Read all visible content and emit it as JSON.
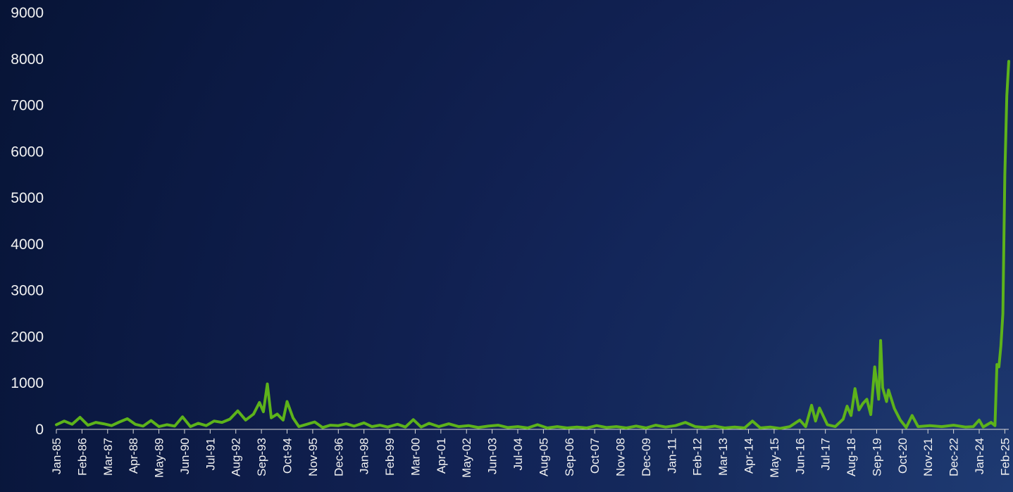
{
  "chart_data": {
    "type": "line",
    "title": "",
    "xlabel": "",
    "ylabel": "",
    "ylim": [
      0,
      9000
    ],
    "yticks": [
      0,
      1000,
      2000,
      3000,
      4000,
      5000,
      6000,
      7000,
      8000,
      9000
    ],
    "xlim": [
      "1985-01",
      "2025-04"
    ],
    "xticks": [
      "Jan-85",
      "Feb-86",
      "Mar-87",
      "Apr-88",
      "May-89",
      "Jun-90",
      "Jul-91",
      "Aug-92",
      "Sep-93",
      "Oct-94",
      "Nov-95",
      "Dec-96",
      "Jan-98",
      "Feb-99",
      "Mar-00",
      "Apr-01",
      "May-02",
      "Jun-03",
      "Jul-04",
      "Aug-05",
      "Sep-06",
      "Oct-07",
      "Nov-08",
      "Dec-09",
      "Jan-11",
      "Feb-12",
      "Mar-13",
      "Apr-14",
      "May-15",
      "Jun-16",
      "Jul-17",
      "Aug-18",
      "Sep-19",
      "Oct-20",
      "Nov-21",
      "Dec-22",
      "Jan-24",
      "Feb-25"
    ],
    "grid": false,
    "legend": "none",
    "line_color": "#5db31b",
    "series": [
      {
        "points": [
          [
            "1985-01",
            100
          ],
          [
            "1985-05",
            180
          ],
          [
            "1985-09",
            110
          ],
          [
            "1986-01",
            260
          ],
          [
            "1986-05",
            90
          ],
          [
            "1986-09",
            150
          ],
          [
            "1987-01",
            120
          ],
          [
            "1987-05",
            80
          ],
          [
            "1987-09",
            160
          ],
          [
            "1988-01",
            230
          ],
          [
            "1988-05",
            110
          ],
          [
            "1988-09",
            70
          ],
          [
            "1989-01",
            190
          ],
          [
            "1989-05",
            60
          ],
          [
            "1989-09",
            100
          ],
          [
            "1990-01",
            70
          ],
          [
            "1990-05",
            270
          ],
          [
            "1990-09",
            60
          ],
          [
            "1991-01",
            130
          ],
          [
            "1991-05",
            80
          ],
          [
            "1991-09",
            180
          ],
          [
            "1992-01",
            150
          ],
          [
            "1992-05",
            220
          ],
          [
            "1992-09",
            400
          ],
          [
            "1993-01",
            200
          ],
          [
            "1993-05",
            330
          ],
          [
            "1993-08",
            580
          ],
          [
            "1993-10",
            380
          ],
          [
            "1993-12",
            980
          ],
          [
            "1994-02",
            250
          ],
          [
            "1994-05",
            330
          ],
          [
            "1994-08",
            200
          ],
          [
            "1994-10",
            600
          ],
          [
            "1995-01",
            250
          ],
          [
            "1995-04",
            60
          ],
          [
            "1995-08",
            110
          ],
          [
            "1995-12",
            160
          ],
          [
            "1996-04",
            40
          ],
          [
            "1996-08",
            90
          ],
          [
            "1996-12",
            80
          ],
          [
            "1997-04",
            120
          ],
          [
            "1997-08",
            70
          ],
          [
            "1998-01",
            140
          ],
          [
            "1998-05",
            60
          ],
          [
            "1998-09",
            90
          ],
          [
            "1999-01",
            50
          ],
          [
            "1999-06",
            110
          ],
          [
            "1999-10",
            50
          ],
          [
            "2000-02",
            210
          ],
          [
            "2000-06",
            50
          ],
          [
            "2000-10",
            130
          ],
          [
            "2001-03",
            60
          ],
          [
            "2001-08",
            120
          ],
          [
            "2002-01",
            60
          ],
          [
            "2002-06",
            80
          ],
          [
            "2002-11",
            40
          ],
          [
            "2003-04",
            70
          ],
          [
            "2003-09",
            90
          ],
          [
            "2004-02",
            40
          ],
          [
            "2004-07",
            60
          ],
          [
            "2004-12",
            30
          ],
          [
            "2005-05",
            100
          ],
          [
            "2005-10",
            30
          ],
          [
            "2006-03",
            60
          ],
          [
            "2006-08",
            30
          ],
          [
            "2007-01",
            50
          ],
          [
            "2007-06",
            30
          ],
          [
            "2007-11",
            80
          ],
          [
            "2008-04",
            40
          ],
          [
            "2008-09",
            60
          ],
          [
            "2009-02",
            30
          ],
          [
            "2009-07",
            70
          ],
          [
            "2009-12",
            30
          ],
          [
            "2010-05",
            90
          ],
          [
            "2010-10",
            50
          ],
          [
            "2011-03",
            80
          ],
          [
            "2011-08",
            150
          ],
          [
            "2012-01",
            60
          ],
          [
            "2012-06",
            40
          ],
          [
            "2012-11",
            70
          ],
          [
            "2013-04",
            30
          ],
          [
            "2013-09",
            50
          ],
          [
            "2014-02",
            30
          ],
          [
            "2014-06",
            180
          ],
          [
            "2014-10",
            30
          ],
          [
            "2015-03",
            50
          ],
          [
            "2015-08",
            20
          ],
          [
            "2016-01",
            60
          ],
          [
            "2016-06",
            200
          ],
          [
            "2016-09",
            60
          ],
          [
            "2016-12",
            520
          ],
          [
            "2017-02",
            180
          ],
          [
            "2017-04",
            460
          ],
          [
            "2017-08",
            100
          ],
          [
            "2017-12",
            60
          ],
          [
            "2018-04",
            220
          ],
          [
            "2018-06",
            500
          ],
          [
            "2018-08",
            300
          ],
          [
            "2018-10",
            880
          ],
          [
            "2018-12",
            420
          ],
          [
            "2019-02",
            560
          ],
          [
            "2019-04",
            650
          ],
          [
            "2019-06",
            320
          ],
          [
            "2019-08",
            1350
          ],
          [
            "2019-10",
            650
          ],
          [
            "2019-11",
            1920
          ],
          [
            "2019-12",
            900
          ],
          [
            "2020-02",
            600
          ],
          [
            "2020-03",
            850
          ],
          [
            "2020-06",
            450
          ],
          [
            "2020-09",
            200
          ],
          [
            "2020-12",
            40
          ],
          [
            "2021-03",
            300
          ],
          [
            "2021-06",
            60
          ],
          [
            "2021-12",
            80
          ],
          [
            "2022-06",
            60
          ],
          [
            "2022-12",
            90
          ],
          [
            "2023-06",
            50
          ],
          [
            "2023-10",
            60
          ],
          [
            "2024-01",
            200
          ],
          [
            "2024-03",
            50
          ],
          [
            "2024-07",
            150
          ],
          [
            "2024-09",
            80
          ],
          [
            "2024-10",
            1400
          ],
          [
            "2024-11",
            1350
          ],
          [
            "2024-12",
            1800
          ],
          [
            "2025-01",
            2500
          ],
          [
            "2025-02",
            5500
          ],
          [
            "2025-03",
            7200
          ],
          [
            "2025-04",
            7950
          ]
        ]
      }
    ]
  }
}
